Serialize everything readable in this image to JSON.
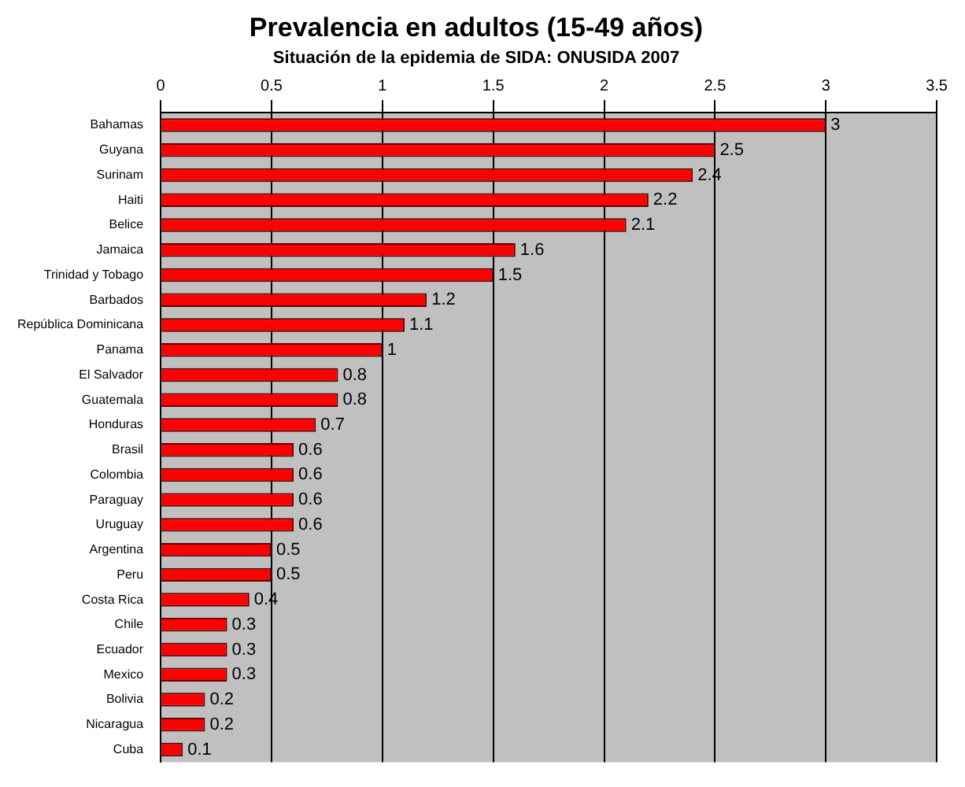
{
  "chart_data": {
    "type": "bar",
    "orientation": "horizontal",
    "title": "Prevalencia en adultos (15-49 años)",
    "subtitle": "Situación de la epidemia de SIDA: ONUSIDA 2007",
    "categories": [
      "Bahamas",
      "Guyana",
      "Surinam",
      "Haiti",
      "Belice",
      "Jamaica",
      "Trinidad y Tobago",
      "Barbados",
      "República Dominicana",
      "Panama",
      "El Salvador",
      "Guatemala",
      "Honduras",
      "Brasil",
      "Colombia",
      "Paraguay",
      "Uruguay",
      "Argentina",
      "Peru",
      "Costa Rica",
      "Chile",
      "Ecuador",
      "Mexico",
      "Bolivia",
      "Nicaragua",
      "Cuba"
    ],
    "values": [
      3,
      2.5,
      2.4,
      2.2,
      2.1,
      1.6,
      1.5,
      1.2,
      1.1,
      1,
      0.8,
      0.8,
      0.7,
      0.6,
      0.6,
      0.6,
      0.6,
      0.5,
      0.5,
      0.4,
      0.3,
      0.3,
      0.3,
      0.2,
      0.2,
      0.1
    ],
    "color": "#ff0000",
    "xlim": [
      0,
      3.5
    ],
    "xticks": [
      0,
      0.5,
      1,
      1.5,
      2,
      2.5,
      3,
      3.5
    ],
    "grid": "x",
    "data_labels": true,
    "legend": false
  }
}
